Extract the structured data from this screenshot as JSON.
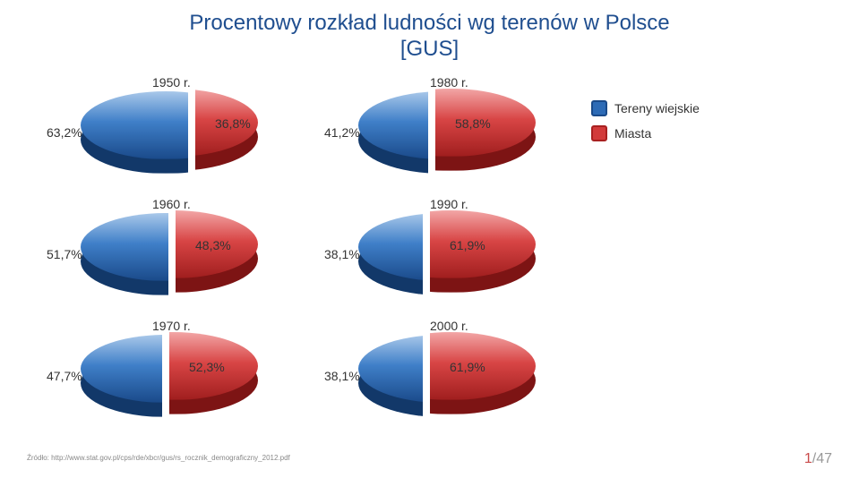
{
  "title_line1": "Procentowy rozkład ludności wg terenów w Polsce",
  "title_line2": "[GUS]",
  "legend": {
    "rural": {
      "label": "Tereny wiejskie",
      "fill": "#2d6bb6",
      "border": "#1a4a8a"
    },
    "urban": {
      "label": "Miasta",
      "fill": "#d23a3a",
      "border": "#a82020"
    }
  },
  "charts": [
    {
      "year": "1950 r.",
      "rural_pct": "63,2%",
      "urban_pct": "36,8%",
      "rural_val": 63.2,
      "urban_val": 36.8
    },
    {
      "year": "1980 r.",
      "rural_pct": "41,2%",
      "urban_pct": "58,8%",
      "rural_val": 41.2,
      "urban_val": 58.8
    },
    {
      "year": "1960 r.",
      "rural_pct": "51,7%",
      "urban_pct": "48,3%",
      "rural_val": 51.7,
      "urban_val": 48.3
    },
    {
      "year": "1990 r.",
      "rural_pct": "38,1%",
      "urban_pct": "61,9%",
      "rural_val": 38.1,
      "urban_val": 61.9
    },
    {
      "year": "1970 r.",
      "rural_pct": "47,7%",
      "urban_pct": "52,3%",
      "rural_val": 47.7,
      "urban_val": 52.3
    },
    {
      "year": "2000 r.",
      "rural_pct": "38,1%",
      "urban_pct": "61,9%",
      "rural_val": 38.1,
      "urban_val": 61.9
    }
  ],
  "colors": {
    "rural_top_light": "#a9c8ea",
    "rural_top_mid": "#3f7fc8",
    "rural_top_dark": "#1a4a8a",
    "rural_side": "#123869",
    "urban_top_light": "#f2a6a6",
    "urban_top_mid": "#d84545",
    "urban_top_dark": "#a01e1e",
    "urban_side": "#7d1414"
  },
  "source": "Źródło: http://www.stat.gov.pl/cps/rde/xbcr/gus/rs_rocznik_demograficzny_2012.pdf",
  "page_current": "1",
  "page_total": "/47"
}
